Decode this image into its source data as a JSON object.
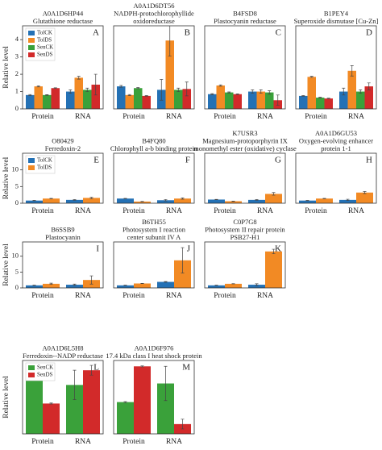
{
  "chart_data": [
    {
      "type": "bar",
      "title": [
        "A0A1D6HP44",
        "Glutathione reductase"
      ],
      "label": "A",
      "ylabel": "Relative level",
      "legend": true,
      "categories": [
        "Protein",
        "RNA"
      ],
      "ylim": [
        0,
        4.8
      ],
      "yticks": [
        0,
        1,
        2,
        3,
        4
      ],
      "series": [
        {
          "name": "TolCK",
          "color": "#2471b5",
          "values": [
            0.8,
            1.0
          ],
          "errors": [
            0.03,
            0.1
          ]
        },
        {
          "name": "TolDS",
          "color": "#f28a24",
          "values": [
            1.3,
            1.8
          ],
          "errors": [
            0.03,
            0.08
          ]
        },
        {
          "name": "SenCK",
          "color": "#3aa13a",
          "values": [
            0.8,
            1.1
          ],
          "errors": [
            0.02,
            0.1
          ]
        },
        {
          "name": "SenDS",
          "color": "#d22a2a",
          "values": [
            1.2,
            1.4
          ],
          "errors": [
            0.02,
            0.6
          ]
        }
      ]
    },
    {
      "type": "bar",
      "title": [
        "A0A1D6DT56",
        "NADPH-protochlorophyllide",
        "oxidoreductase"
      ],
      "label": "B",
      "categories": [
        "Protein",
        "RNA"
      ],
      "ylim": [
        0,
        4.8
      ],
      "series": [
        {
          "name": "TolCK",
          "color": "#2471b5",
          "values": [
            1.3,
            1.1
          ],
          "errors": [
            0.05,
            0.6
          ]
        },
        {
          "name": "TolDS",
          "color": "#f28a24",
          "values": [
            0.8,
            3.95
          ],
          "errors": [
            0.03,
            0.9
          ]
        },
        {
          "name": "SenCK",
          "color": "#3aa13a",
          "values": [
            1.2,
            1.1
          ],
          "errors": [
            0.03,
            0.1
          ]
        },
        {
          "name": "SenDS",
          "color": "#d22a2a",
          "values": [
            0.75,
            1.15
          ],
          "errors": [
            0.02,
            0.4
          ]
        }
      ]
    },
    {
      "type": "bar",
      "title": [
        "B4FSD8",
        "Plastocyanin reductase"
      ],
      "label": "C",
      "categories": [
        "Protein",
        "RNA"
      ],
      "ylim": [
        0,
        4.8
      ],
      "series": [
        {
          "name": "TolCK",
          "color": "#2471b5",
          "values": [
            0.85,
            1.0
          ],
          "errors": [
            0.03,
            0.1
          ]
        },
        {
          "name": "TolDS",
          "color": "#f28a24",
          "values": [
            1.35,
            1.0
          ],
          "errors": [
            0.04,
            0.1
          ]
        },
        {
          "name": "SenCK",
          "color": "#3aa13a",
          "values": [
            0.95,
            0.95
          ],
          "errors": [
            0.03,
            0.1
          ]
        },
        {
          "name": "SenDS",
          "color": "#d22a2a",
          "values": [
            0.85,
            0.5
          ],
          "errors": [
            0.02,
            0.3
          ]
        }
      ]
    },
    {
      "type": "bar",
      "title": [
        "B1PEY4",
        "Superoxide dismutase [Cu-Zn]"
      ],
      "label": "D",
      "categories": [
        "Protein",
        "RNA"
      ],
      "ylim": [
        0,
        4.8
      ],
      "series": [
        {
          "name": "TolCK",
          "color": "#2471b5",
          "values": [
            0.75,
            1.0
          ],
          "errors": [
            0.02,
            0.2
          ]
        },
        {
          "name": "TolDS",
          "color": "#f28a24",
          "values": [
            1.85,
            2.2
          ],
          "errors": [
            0.03,
            0.3
          ]
        },
        {
          "name": "SenCK",
          "color": "#3aa13a",
          "values": [
            0.65,
            1.0
          ],
          "errors": [
            0.02,
            0.1
          ]
        },
        {
          "name": "SenDS",
          "color": "#d22a2a",
          "values": [
            0.6,
            1.3
          ],
          "errors": [
            0.02,
            0.2
          ]
        }
      ]
    },
    {
      "type": "bar",
      "title": [
        "O80429",
        "Ferredoxin-2"
      ],
      "label": "E",
      "ylabel": "Relative level",
      "legend": true,
      "categories": [
        "Protein",
        "RNA"
      ],
      "ylim": [
        0,
        15
      ],
      "yticks": [
        0,
        5,
        10
      ],
      "series": [
        {
          "name": "TolCK",
          "color": "#2471b5",
          "values": [
            0.8,
            1.0
          ],
          "errors": [
            0.05,
            0.1
          ]
        },
        {
          "name": "TolDS",
          "color": "#f28a24",
          "values": [
            1.4,
            1.6
          ],
          "errors": [
            0.05,
            0.2
          ]
        }
      ]
    },
    {
      "type": "bar",
      "title": [
        "B4FQ80",
        "Chlorophyll a-b binding protein"
      ],
      "label": "F",
      "categories": [
        "Protein",
        "RNA"
      ],
      "ylim": [
        0,
        15
      ],
      "series": [
        {
          "name": "TolCK",
          "color": "#2471b5",
          "values": [
            1.4,
            0.9
          ],
          "errors": [
            0.05,
            0.2
          ]
        },
        {
          "name": "TolDS",
          "color": "#f28a24",
          "values": [
            0.5,
            1.4
          ],
          "errors": [
            0.05,
            0.2
          ]
        }
      ]
    },
    {
      "type": "bar",
      "title": [
        "K7USR3",
        "Magnesium-protoporphyrin IX",
        "monomethyl ester (oxidative) cyclase"
      ],
      "label": "G",
      "categories": [
        "Protein",
        "RNA"
      ],
      "ylim": [
        0,
        15
      ],
      "series": [
        {
          "name": "TolCK",
          "color": "#2471b5",
          "values": [
            1.1,
            1.0
          ],
          "errors": [
            0.05,
            0.1
          ]
        },
        {
          "name": "TolDS",
          "color": "#f28a24",
          "values": [
            0.6,
            2.8
          ],
          "errors": [
            0.05,
            0.4
          ]
        }
      ]
    },
    {
      "type": "bar",
      "title": [
        "A0A1D6GU53",
        "Oxygen-evolving enhancer",
        "protein 1-1"
      ],
      "label": "H",
      "categories": [
        "Protein",
        "RNA"
      ],
      "ylim": [
        0,
        15
      ],
      "series": [
        {
          "name": "TolCK",
          "color": "#2471b5",
          "values": [
            0.8,
            1.0
          ],
          "errors": [
            0.05,
            0.2
          ]
        },
        {
          "name": "TolDS",
          "color": "#f28a24",
          "values": [
            1.4,
            3.2
          ],
          "errors": [
            0.05,
            0.3
          ]
        }
      ]
    },
    {
      "type": "bar",
      "title": [
        "B6SSB9",
        "Plastocyanin"
      ],
      "label": "I",
      "ylabel": "Relative level",
      "categories": [
        "Protein",
        "RNA"
      ],
      "ylim": [
        0,
        14.5
      ],
      "yticks": [
        0,
        5,
        10
      ],
      "series": [
        {
          "name": "TolCK",
          "color": "#2471b5",
          "values": [
            0.8,
            1.0
          ],
          "errors": [
            0.05,
            0.2
          ]
        },
        {
          "name": "TolDS",
          "color": "#f28a24",
          "values": [
            1.3,
            2.5
          ],
          "errors": [
            0.2,
            1.3
          ]
        }
      ]
    },
    {
      "type": "bar",
      "title": [
        "B6TH55",
        "Photosystem I reaction",
        "center subunit IV A"
      ],
      "label": "J",
      "categories": [
        "Protein",
        "RNA"
      ],
      "ylim": [
        0,
        14.5
      ],
      "series": [
        {
          "name": "TolCK",
          "color": "#2471b5",
          "values": [
            0.8,
            1.9
          ],
          "errors": [
            0.05,
            0.1
          ]
        },
        {
          "name": "TolDS",
          "color": "#f28a24",
          "values": [
            1.4,
            8.7
          ],
          "errors": [
            0.05,
            4
          ]
        }
      ]
    },
    {
      "type": "bar",
      "title": [
        "C0P7G8",
        "Photosystem II repair protein",
        "PSB27-H1"
      ],
      "label": "K",
      "categories": [
        "Protein",
        "RNA"
      ],
      "ylim": [
        0,
        14.5
      ],
      "series": [
        {
          "name": "TolCK",
          "color": "#2471b5",
          "values": [
            0.8,
            1.0
          ],
          "errors": [
            0.05,
            0.3
          ]
        },
        {
          "name": "TolDS",
          "color": "#f28a24",
          "values": [
            1.3,
            11.5
          ],
          "errors": [
            0.05,
            0.7
          ]
        }
      ]
    },
    {
      "type": "bar",
      "title": [
        "A0A1D6L5H8",
        "Ferredoxin--NADP reductase"
      ],
      "label": "L",
      "ylabel": "Relative level",
      "legend": true,
      "categories": [
        "Protein",
        "RNA"
      ],
      "ylim": [
        0,
        1.5
      ],
      "series": [
        {
          "name": "SenCK",
          "color": "#3aa13a",
          "values": [
            1.12,
            1.0
          ],
          "errors": [
            0.02,
            0.3
          ]
        },
        {
          "name": "SenDS",
          "color": "#d22a2a",
          "values": [
            0.62,
            1.3
          ],
          "errors": [
            0.01,
            0.1
          ]
        }
      ]
    },
    {
      "type": "bar",
      "title": [
        "A0A1D6F976",
        "17.4 kDa class I heat shock protein"
      ],
      "label": "M",
      "categories": [
        "Protein",
        "RNA"
      ],
      "ylim": [
        0,
        1.5
      ],
      "series": [
        {
          "name": "SenCK",
          "color": "#3aa13a",
          "values": [
            0.65,
            1.03
          ],
          "errors": [
            0.01,
            0.35
          ]
        },
        {
          "name": "SenDS",
          "color": "#d22a2a",
          "values": [
            1.38,
            0.2
          ],
          "errors": [
            0.01,
            0.1
          ]
        }
      ]
    }
  ]
}
